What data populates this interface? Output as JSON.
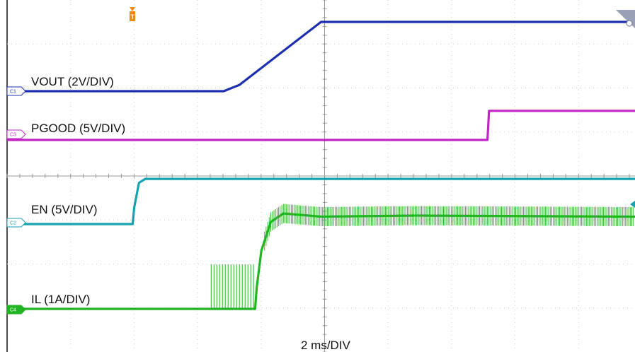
{
  "chart_data": {
    "type": "line",
    "title": "",
    "xlabel": "2 ms/DIV",
    "x_unit": "ms",
    "ms_per_div": 2,
    "x_range_ms": [
      -10,
      10
    ],
    "divisions": {
      "x": 10,
      "y": 8
    },
    "grid": "dotted",
    "series": [
      {
        "id": "c1",
        "name": "VOUT (2V/DIV)",
        "channel": "C1",
        "color": "#1d2fb0",
        "style": "trace",
        "points": [
          [
            -10,
            0
          ],
          [
            -3.1,
            0
          ],
          [
            -2.6,
            0.09
          ],
          [
            0,
            0.99
          ],
          [
            10,
            0.99
          ]
        ]
      },
      {
        "id": "c3",
        "name": "PGOOD (5V/DIV)",
        "channel": "C3",
        "color": "#c226c4",
        "style": "trace",
        "points": [
          [
            -10,
            0
          ],
          [
            5.3,
            0
          ],
          [
            5.35,
            0.4
          ],
          [
            10,
            0.4
          ]
        ]
      },
      {
        "id": "c2",
        "name": "EN (5V/DIV)",
        "channel": "C2",
        "color": "#17a2b0",
        "style": "trace",
        "points": [
          [
            -10,
            0
          ],
          [
            -6.0,
            0
          ],
          [
            -5.95,
            0.25
          ],
          [
            -5.8,
            0.62
          ],
          [
            -5.6,
            0.68
          ],
          [
            10,
            0.68
          ]
        ]
      },
      {
        "id": "c4",
        "name": "IL (1A/DIV)",
        "channel": "C4",
        "color": "#21b521",
        "style": "trace",
        "points": [
          [
            -10,
            0
          ],
          [
            -2.1,
            0
          ],
          [
            -2.05,
            0.2
          ],
          [
            -1.9,
            0.55
          ],
          [
            -1.6,
            0.82
          ],
          [
            -1.2,
            0.9
          ],
          [
            0,
            0.87
          ],
          [
            3,
            0.88
          ],
          [
            10,
            0.87
          ]
        ],
        "ripple_from": -1.8,
        "ripple_amplitude": 0.18
      }
    ]
  },
  "labels": {
    "c1": "VOUT (2V/DIV)",
    "c3": "PGOOD (5V/DIV)",
    "c2": "EN (5V/DIV)",
    "c4": "IL (1A/DIV)",
    "xaxis": "2 ms/DIV"
  },
  "tags": {
    "c1": "C1",
    "c2": "C2",
    "c3": "C3",
    "c4": "C4",
    "trigger": "T"
  },
  "colors": {
    "c1": "#1d2fb0",
    "c2": "#17a2b0",
    "c3": "#c226c4",
    "c4": "#21b521",
    "trigger": "#e8891a"
  }
}
